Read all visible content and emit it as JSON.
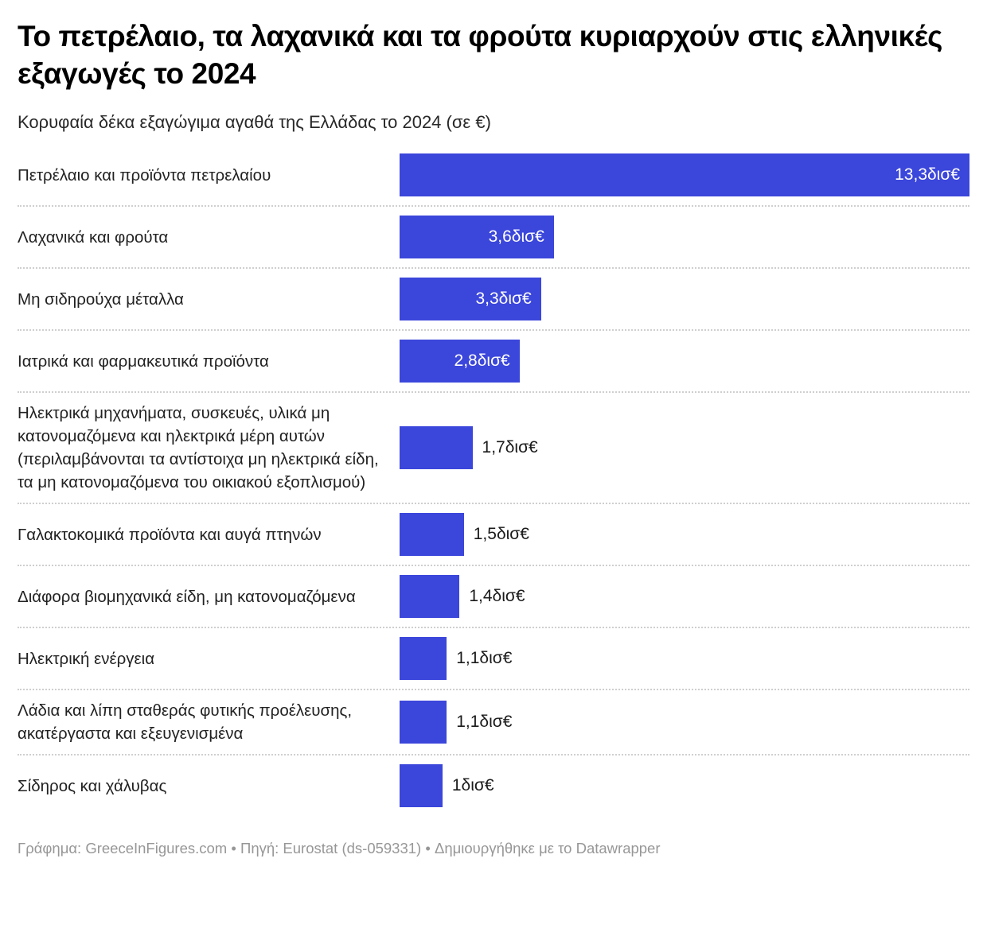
{
  "chart_data": {
    "type": "bar",
    "orientation": "horizontal",
    "title": "Το πετρέλαιο, τα λαχανικά και τα φρούτα κυριαρχούν στις ελληνικές εξαγωγές το 2024",
    "subtitle": "Κορυφαία δέκα εξαγώγιμα αγαθά της Ελλάδας το 2024 (σε €)",
    "unit": "δισ€ (δισεκατομμύρια ευρώ)",
    "xlim": [
      0,
      13.3
    ],
    "grid": false,
    "legend": false,
    "bar_color": "#3b46db",
    "categories": [
      "Πετρέλαιο και προϊόντα πετρελαίου",
      "Λαχανικά και φρούτα",
      "Μη σιδηρούχα μέταλλα",
      "Ιατρικά και φαρμακευτικά προϊόντα",
      "Ηλεκτρικά μηχανήματα, συσκευές, υλικά μη κατονομαζόμενα και ηλεκτρικά μέρη αυτών (περιλαμβάνονται τα αντίστοιχα μη ηλεκτρικά είδη, τα μη κατονομαζόμενα του οικιακού εξοπλισμού)",
      "Γαλακτοκομικά προϊόντα και αυγά πτηνών",
      "Διάφορα βιομηχανικά είδη, μη κατονομαζόμενα",
      "Ηλεκτρική ενέργεια",
      "Λάδια και λίπη σταθεράς φυτικής προέλευσης, ακατέργαστα και εξευγενισμένα",
      "Σίδηρος και χάλυβας"
    ],
    "values": [
      13.3,
      3.6,
      3.3,
      2.8,
      1.7,
      1.5,
      1.4,
      1.1,
      1.1,
      1.0
    ],
    "value_labels": [
      "13,3δισ€",
      "3,6δισ€",
      "3,3δισ€",
      "2,8δισ€",
      "1,7δισ€",
      "1,5δισ€",
      "1,4δισ€",
      "1,1δισ€",
      "1,1δισ€",
      "1δισ€"
    ],
    "label_inside": [
      true,
      true,
      true,
      true,
      false,
      false,
      false,
      false,
      false,
      false
    ]
  },
  "footer": {
    "text": "Γράφημα: GreeceInFigures.com • Πηγή: Eurostat (ds-059331) • Δημιουργήθηκε με το Datawrapper"
  }
}
